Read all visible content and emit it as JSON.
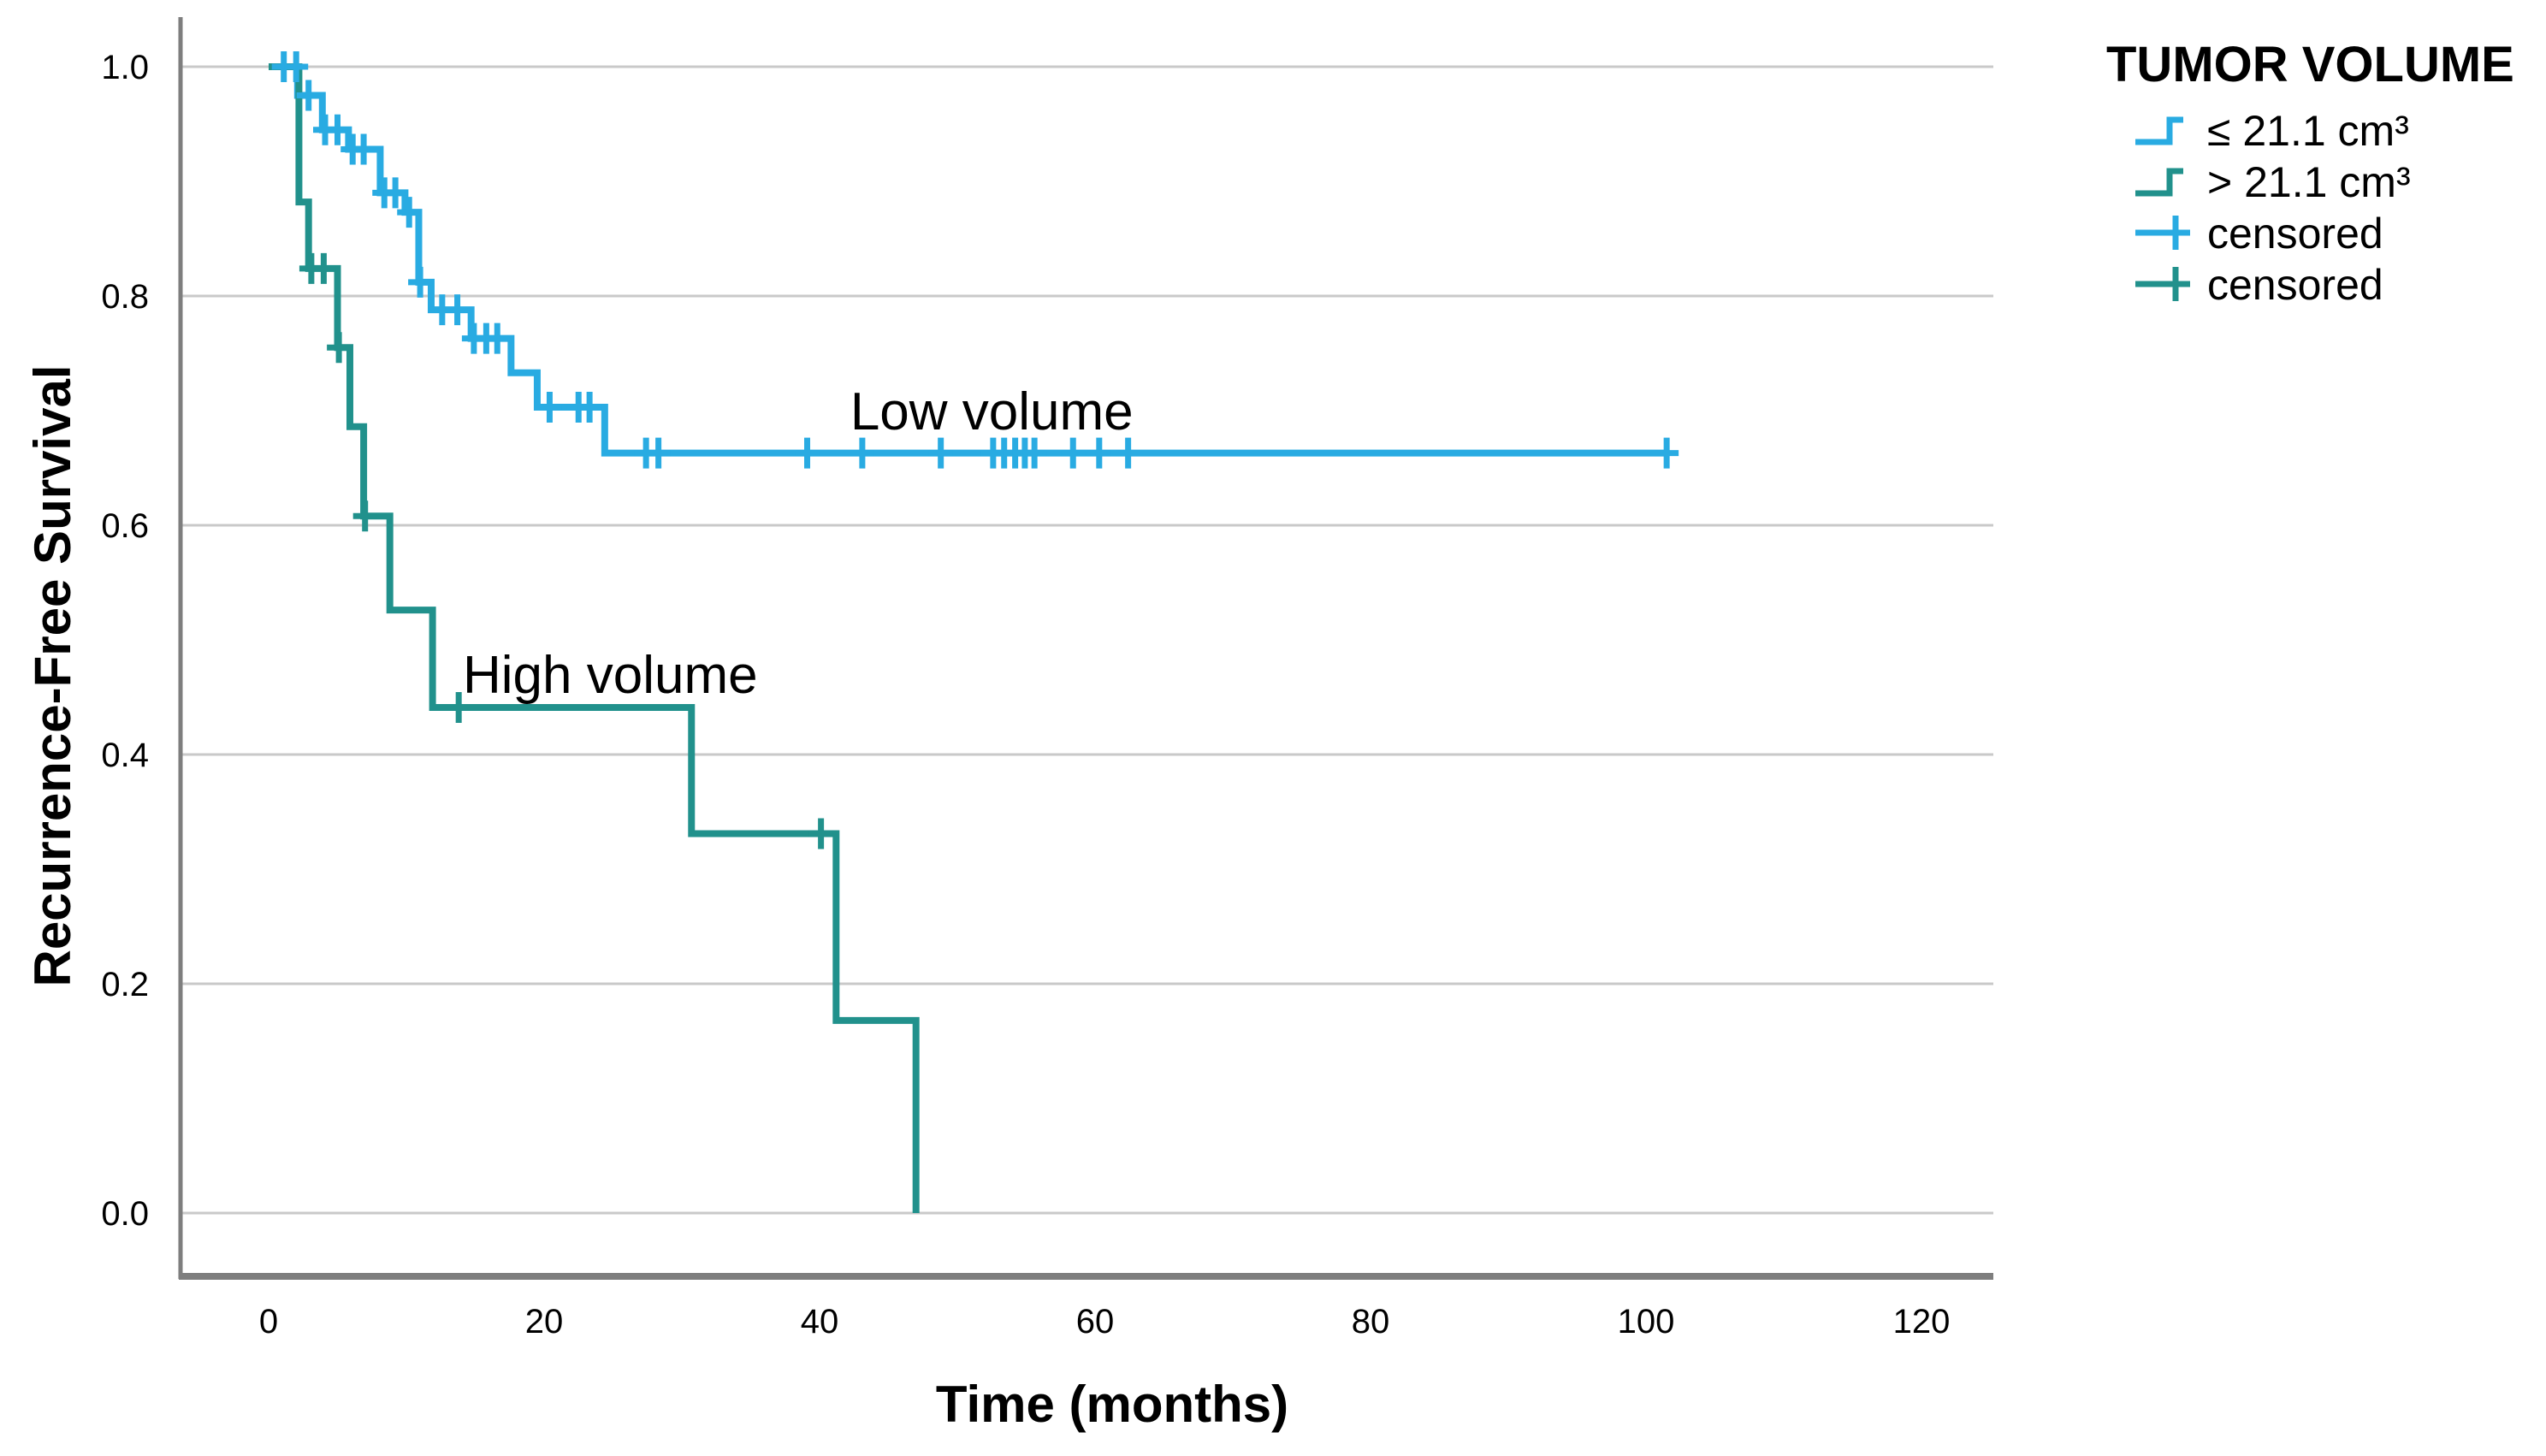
{
  "chart_data": {
    "type": "line",
    "subtype": "kaplan-meier-step",
    "title": "",
    "xlabel": "Time (months)",
    "ylabel": "Recurrence-Free Survival",
    "xticks": [
      0,
      20,
      40,
      60,
      80,
      100,
      120
    ],
    "yticks": [
      0.0,
      0.2,
      0.4,
      0.6,
      0.8,
      1.0
    ],
    "xlim": [
      -6.4,
      125.2
    ],
    "ylim": [
      -0.055,
      1.043
    ],
    "grid": "horizontal-only",
    "gridline_color": "#C9C9C9",
    "axis_color": "#7E7E7E",
    "legend_position": "top-right-outside",
    "legend_title": "TUMOR VOLUME",
    "annotations": [
      {
        "text": "Low volume",
        "t": 52.5,
        "v": 0.7
      },
      {
        "text": "High volume",
        "t": 24.8,
        "v": 0.47
      }
    ],
    "series": [
      {
        "name": "≤ 21.1 cm³",
        "annotation": "Low volume",
        "color": "#29ABE2",
        "censored_label": "censored",
        "end_time": 101.5,
        "steps": [
          [
            0,
            1.0
          ],
          [
            2.1,
            0.975
          ],
          [
            3.9,
            0.945
          ],
          [
            5.8,
            0.928
          ],
          [
            8.1,
            0.89
          ],
          [
            9.9,
            0.873
          ],
          [
            10.9,
            0.812
          ],
          [
            11.8,
            0.788
          ],
          [
            14.7,
            0.763
          ],
          [
            17.6,
            0.733
          ],
          [
            19.5,
            0.703
          ],
          [
            24.4,
            0.663
          ]
        ],
        "censored": [
          [
            1.1,
            1.0
          ],
          [
            2.0,
            1.0
          ],
          [
            2.9,
            0.975
          ],
          [
            4.1,
            0.945
          ],
          [
            5.0,
            0.945
          ],
          [
            6.1,
            0.928
          ],
          [
            6.9,
            0.928
          ],
          [
            8.4,
            0.89
          ],
          [
            9.2,
            0.89
          ],
          [
            10.2,
            0.873
          ],
          [
            11.0,
            0.812
          ],
          [
            12.6,
            0.788
          ],
          [
            13.7,
            0.788
          ],
          [
            14.9,
            0.763
          ],
          [
            15.8,
            0.763
          ],
          [
            16.6,
            0.763
          ],
          [
            20.4,
            0.703
          ],
          [
            22.5,
            0.703
          ],
          [
            23.3,
            0.703
          ],
          [
            27.4,
            0.663
          ],
          [
            28.3,
            0.663
          ],
          [
            39.1,
            0.663
          ],
          [
            43.1,
            0.663
          ],
          [
            48.8,
            0.663
          ],
          [
            52.6,
            0.663
          ],
          [
            53.4,
            0.663
          ],
          [
            54.2,
            0.663
          ],
          [
            54.9,
            0.663
          ],
          [
            55.6,
            0.663
          ],
          [
            58.4,
            0.663
          ],
          [
            60.3,
            0.663
          ],
          [
            62.4,
            0.663
          ],
          [
            101.5,
            0.663
          ]
        ]
      },
      {
        "name": "> 21.1 cm³",
        "annotation": "High volume",
        "color": "#21918C",
        "censored_label": "censored",
        "end_time": 47.0,
        "steps": [
          [
            0,
            1.0
          ],
          [
            2.2,
            0.882
          ],
          [
            2.9,
            0.824
          ],
          [
            5.0,
            0.755
          ],
          [
            5.9,
            0.686
          ],
          [
            6.9,
            0.608
          ],
          [
            8.8,
            0.526
          ],
          [
            11.9,
            0.441
          ],
          [
            30.7,
            0.331
          ],
          [
            41.2,
            0.168
          ],
          [
            47.0,
            0.0
          ]
        ],
        "censored": [
          [
            3.1,
            0.824
          ],
          [
            4.0,
            0.824
          ],
          [
            5.1,
            0.755
          ],
          [
            7.0,
            0.608
          ],
          [
            13.8,
            0.441
          ],
          [
            40.1,
            0.331
          ]
        ]
      }
    ]
  }
}
